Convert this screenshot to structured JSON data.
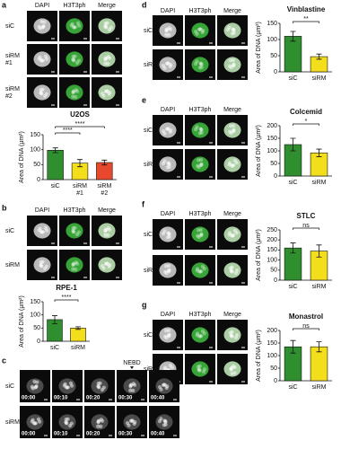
{
  "panels": [
    {
      "label": "a",
      "columns": [
        "DAPI",
        "H3T3ph",
        "Merge"
      ],
      "rows": [
        "siC",
        "siRM #1",
        "siRM #2"
      ]
    },
    {
      "label": "b",
      "columns": [
        "DAPI",
        "H3T3ph",
        "Merge"
      ],
      "rows": [
        "siC",
        "siRM"
      ]
    },
    {
      "label": "c",
      "marker": "NEBD",
      "rows": [
        "siC",
        "siRM"
      ],
      "times": [
        "00:00",
        "00:10",
        "00:20",
        "00:30",
        "00:40"
      ]
    },
    {
      "label": "d",
      "columns": [
        "DAPI",
        "H3T3ph",
        "Merge"
      ],
      "rows": [
        "siC",
        "siRM"
      ]
    },
    {
      "label": "e",
      "columns": [
        "DAPI",
        "H3T3ph",
        "Merge"
      ],
      "rows": [
        "siC",
        "siRM"
      ]
    },
    {
      "label": "f",
      "columns": [
        "DAPI",
        "H3T3ph",
        "Merge"
      ],
      "rows": [
        "siC",
        "siRM"
      ]
    },
    {
      "label": "g",
      "columns": [
        "DAPI",
        "H3T3ph",
        "Merge"
      ],
      "rows": [
        "siC",
        "siRM"
      ]
    }
  ],
  "chart_data": [
    {
      "type": "bar",
      "title": "U2OS",
      "y_label": "Area of DNA (μm²)",
      "categories": [
        "siC",
        "siRM #1",
        "siRM #2"
      ],
      "values": [
        98,
        55,
        57
      ],
      "errors": [
        8,
        12,
        8
      ],
      "colors": [
        "#2f8f2f",
        "#f2de1b",
        "#e8482c"
      ],
      "ylim": [
        0,
        150
      ],
      "yticks": [
        0,
        50,
        100,
        150
      ],
      "significance": [
        "****",
        "****"
      ]
    },
    {
      "type": "bar",
      "title": "RPE-1",
      "y_label": "Area of DNA (μm²)",
      "categories": [
        "siC",
        "siRM"
      ],
      "values": [
        82,
        50
      ],
      "errors": [
        15,
        5
      ],
      "colors": [
        "#2f8f2f",
        "#f2de1b"
      ],
      "ylim": [
        0,
        150
      ],
      "yticks": [
        0,
        50,
        100,
        150
      ],
      "significance": [
        "****"
      ]
    },
    {
      "type": "bar",
      "title": "Vinblastine",
      "y_label": "Area of DNA (μm²)",
      "categories": [
        "siC",
        "siRM"
      ],
      "values": [
        110,
        47
      ],
      "errors": [
        15,
        8
      ],
      "colors": [
        "#2f8f2f",
        "#f2de1b"
      ],
      "ylim": [
        0,
        150
      ],
      "yticks": [
        0,
        50,
        100,
        150
      ],
      "significance": [
        "**"
      ]
    },
    {
      "type": "bar",
      "title": "Colcemid",
      "y_label": "Area of DNA (μm²)",
      "categories": [
        "siC",
        "siRM"
      ],
      "values": [
        125,
        92
      ],
      "errors": [
        25,
        15
      ],
      "colors": [
        "#2f8f2f",
        "#f2de1b"
      ],
      "ylim": [
        0,
        200
      ],
      "yticks": [
        0,
        50,
        100,
        150,
        200
      ],
      "significance": [
        "*"
      ]
    },
    {
      "type": "bar",
      "title": "STLC",
      "y_label": "Area of DNA (μm²)",
      "categories": [
        "siC",
        "siRM"
      ],
      "values": [
        160,
        145
      ],
      "errors": [
        25,
        30
      ],
      "colors": [
        "#2f8f2f",
        "#f2de1b"
      ],
      "ylim": [
        0,
        250
      ],
      "yticks": [
        0,
        50,
        100,
        150,
        200,
        250
      ],
      "significance": [
        "ns"
      ]
    },
    {
      "type": "bar",
      "title": "Monastrol",
      "y_label": "Area of DNA (μm²)",
      "categories": [
        "siC",
        "siRM"
      ],
      "values": [
        135,
        135
      ],
      "errors": [
        25,
        20
      ],
      "colors": [
        "#2f8f2f",
        "#f2de1b"
      ],
      "ylim": [
        0,
        200
      ],
      "yticks": [
        0,
        50,
        100,
        150,
        200
      ],
      "significance": [
        "ns"
      ]
    }
  ]
}
